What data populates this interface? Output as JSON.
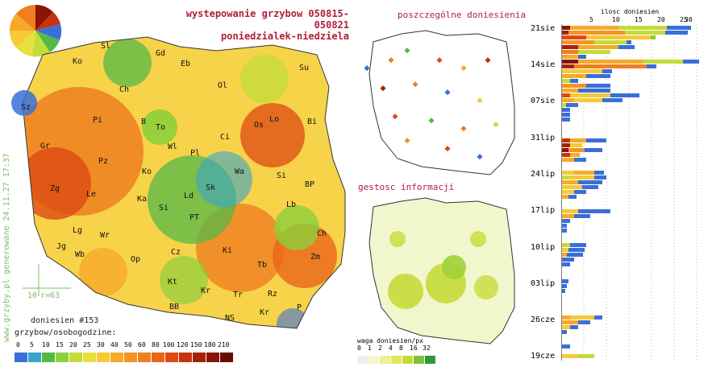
{
  "header": {
    "line1": "wystepowanie grzybow 050815-050821",
    "line2": "poniedzialek-niedziela"
  },
  "panels": {
    "reports_title": "poszczególne doniesienia",
    "density_title": "gestosc informacji",
    "density_legend_title": "waga doniesien/px",
    "density_legend_values": [
      "0",
      "1",
      "2",
      "4",
      "8",
      "16",
      "32"
    ]
  },
  "main_map": {
    "reports_count": "doniesien #153",
    "legend_title": "grzybow/osobogodzine:",
    "legend_values": [
      "0",
      "5",
      "10",
      "15",
      "20",
      "25",
      "30",
      "40",
      "50",
      "60",
      "80",
      "100",
      "120",
      "150",
      "180",
      "210"
    ],
    "legend_colors": [
      "#3a6fd8",
      "#3aa5c8",
      "#55b848",
      "#8ccf3a",
      "#c4dc3a",
      "#e8e03a",
      "#f7c934",
      "#f6aa28",
      "#f39424",
      "#ef7f1f",
      "#e9651a",
      "#dd4a13",
      "#c7330f",
      "#a9210a",
      "#8a1406",
      "#6a0b03"
    ],
    "scale_label": "10",
    "radius_label": "r=63",
    "watermark": "www.grzyby.pl generowane 24.11.27 17:37",
    "cities": [
      "Sl",
      "Gd",
      "Ko",
      "Eb",
      "Su",
      "Ch",
      "Ol",
      "Sz",
      "Pi",
      "B",
      "To",
      "Os",
      "Lo",
      "Bi",
      "Gr",
      "Wl",
      "Pl",
      "Ci",
      "Pz",
      "Ko",
      "Wa",
      "Si",
      "Zg",
      "Le",
      "Ka",
      "Ld",
      "Sk",
      "BP",
      "Si",
      "PT",
      "Lb",
      "Lg",
      "Wr",
      "Ch",
      "Wb",
      "Jg",
      "Op",
      "Cz",
      "Ki",
      "Zm",
      "Tb",
      "Kt",
      "Kr",
      "Tr",
      "Rz",
      "BB",
      "Kr",
      "NS",
      "P"
    ]
  },
  "histogram": {
    "axis_title": "ilosc doniesien",
    "ticks": [
      "5",
      "10",
      "15",
      "20",
      "25",
      "30"
    ],
    "dates": [
      "21sie",
      "14sie",
      "07sie",
      "31lip",
      "24lip",
      "17lip",
      "10lip",
      "03lip",
      "26cze",
      "19cze"
    ]
  }
}
